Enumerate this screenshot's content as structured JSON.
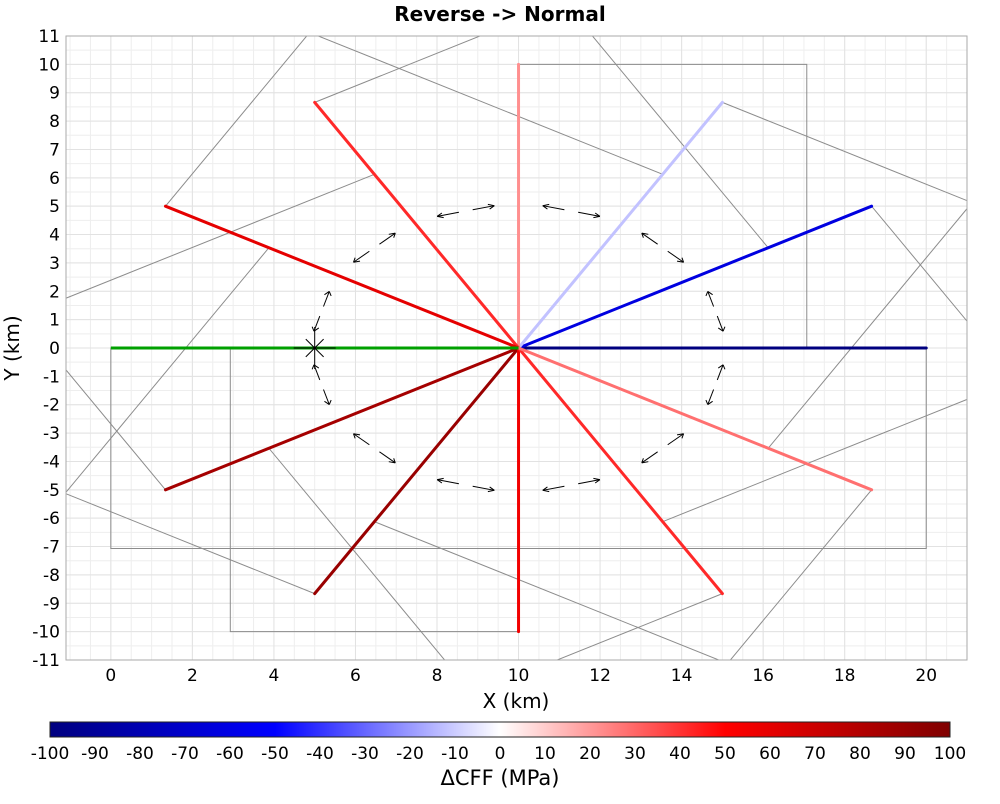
{
  "chart_data": {
    "type": "line",
    "title": "Reverse -> Normal",
    "xlabel": "X (km)",
    "ylabel": "Y (km)",
    "xlim": [
      -1.1,
      21
    ],
    "ylim": [
      -11,
      11
    ],
    "xticks": [
      0,
      2,
      4,
      6,
      8,
      10,
      12,
      14,
      16,
      18,
      20
    ],
    "yticks": [
      -11,
      -10,
      -9,
      -8,
      -7,
      -6,
      -5,
      -4,
      -3,
      -2,
      -1,
      0,
      1,
      2,
      3,
      4,
      5,
      6,
      7,
      8,
      9,
      10,
      11
    ],
    "grid": true,
    "source_fault": {
      "x": [
        0,
        10
      ],
      "y": [
        0,
        0
      ],
      "color": "#00a000"
    },
    "receiver_faults": [
      {
        "x": [
          10,
          20
        ],
        "y": [
          0,
          0
        ],
        "dcff": -100
      },
      {
        "x": [
          10,
          18.66
        ],
        "y": [
          0,
          5
        ],
        "dcff": -62
      },
      {
        "x": [
          10,
          15
        ],
        "y": [
          0,
          8.66
        ],
        "dcff": -12
      },
      {
        "x": [
          10,
          10
        ],
        "y": [
          0,
          10
        ],
        "dcff": 22
      },
      {
        "x": [
          10,
          5
        ],
        "y": [
          0,
          8.66
        ],
        "dcff": 42
      },
      {
        "x": [
          10,
          1.34
        ],
        "y": [
          0,
          5
        ],
        "dcff": 60
      },
      {
        "x": [
          10,
          1.34
        ],
        "y": [
          0,
          -5
        ],
        "dcff": 85
      },
      {
        "x": [
          10,
          5
        ],
        "y": [
          0,
          -8.66
        ],
        "dcff": 90
      },
      {
        "x": [
          10,
          10
        ],
        "y": [
          0,
          -10
        ],
        "dcff": 55
      },
      {
        "x": [
          10,
          15
        ],
        "y": [
          0,
          -8.66
        ],
        "dcff": 42
      },
      {
        "x": [
          10,
          18.66
        ],
        "y": [
          0,
          -5
        ],
        "dcff": 28
      }
    ],
    "hypocenter": {
      "x": 5,
      "y": 0
    },
    "colorbar": {
      "label": "ΔCFF (MPa)",
      "range": [
        -100,
        100
      ],
      "ticks": [
        -100,
        -90,
        -80,
        -70,
        -60,
        -50,
        -40,
        -30,
        -20,
        -10,
        0,
        10,
        20,
        30,
        40,
        50,
        60,
        70,
        80,
        90,
        100
      ],
      "colors": [
        "#00007f",
        "#0000ff",
        "#ffffff",
        "#ff0000",
        "#7f0000"
      ]
    }
  }
}
